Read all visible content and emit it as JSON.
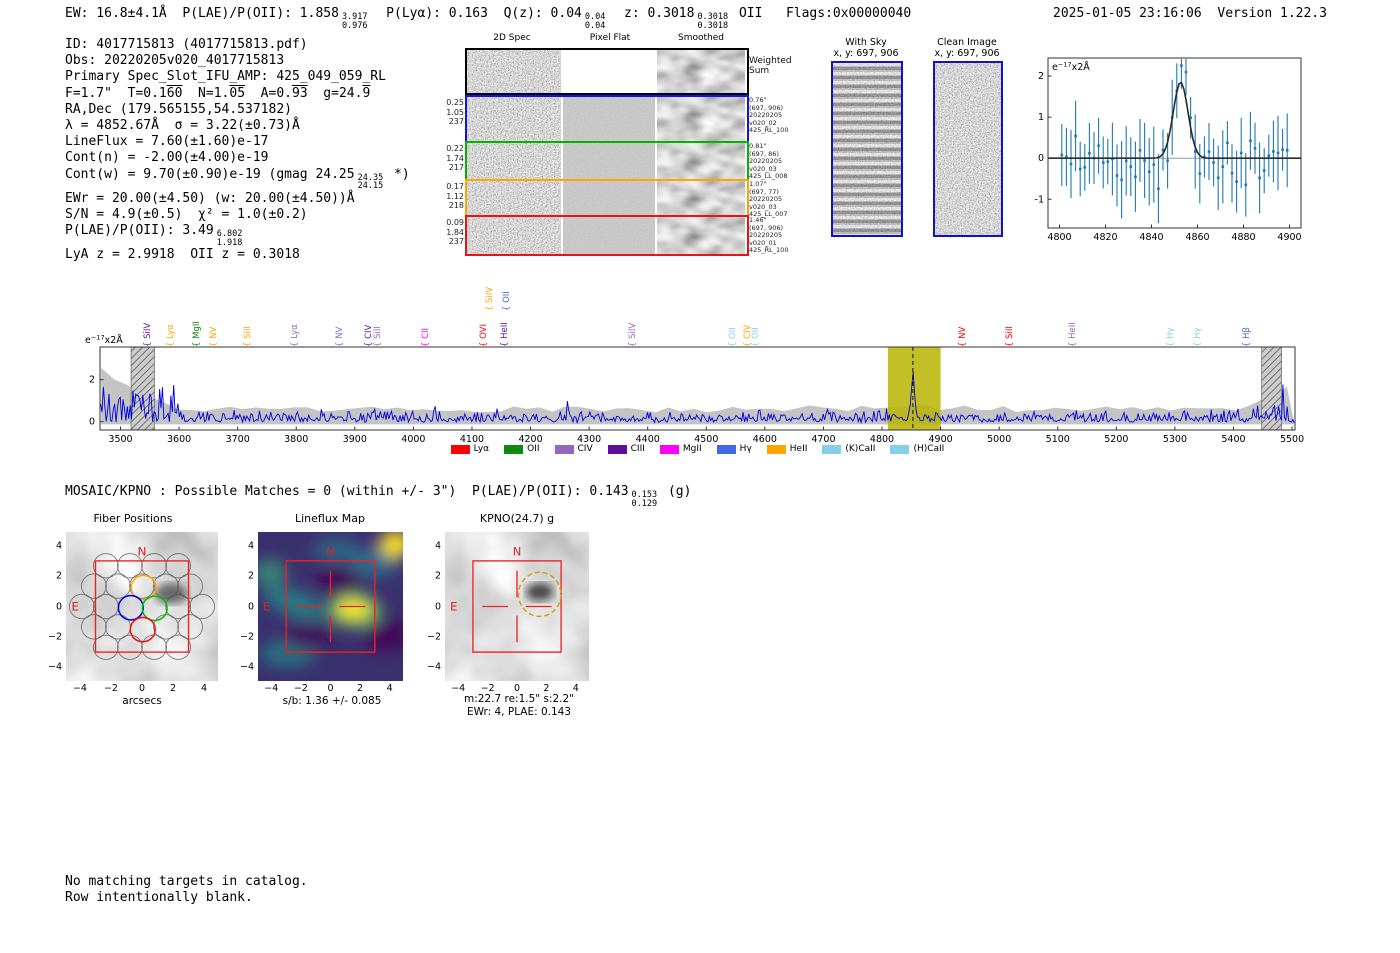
{
  "header": {
    "left_segments": [
      {
        "t": "EW: 16.8±4.1Å  P(LAE)/P(OII): 1.858"
      },
      {
        "hi": "3.917",
        "lo": "0.976"
      },
      {
        "t": "  P(Lyα): 0.163  Q(z): 0.04"
      },
      {
        "hi": "0.04",
        "lo": "0.04"
      },
      {
        "t": "  z: 0.3018"
      },
      {
        "hi": "0.3018",
        "lo": "0.3018"
      },
      {
        "t": " OII   Flags:0x00000040"
      }
    ],
    "timestamp": "2025-01-05 23:16:06",
    "version": "Version 1.22.3"
  },
  "info_block": {
    "lines": [
      [
        {
          "t": "ID: 4017715813 (4017715813.pdf)"
        }
      ],
      [
        {
          "t": "Obs: 20220205v020_4017715813"
        }
      ],
      [
        {
          "t": "Primary Spec_Slot_IFU_AMP: 425_049_059_RL"
        }
      ],
      [
        {
          "t": "F=1.7\"  T=0.1"
        },
        {
          "t": "60",
          "ov": true
        },
        {
          "t": "  N=1."
        },
        {
          "t": "05",
          "ov": true
        },
        {
          "t": "  A=0."
        },
        {
          "t": "93",
          "ov": true
        },
        {
          "t": "  g=24."
        },
        {
          "t": "9",
          "ov": true
        }
      ],
      [
        {
          "t": "RA,Dec (179.565155,54.537182)"
        }
      ],
      [
        {
          "t": "λ = 4852.67Å  σ = 3.22(±0.73)Å"
        }
      ],
      [
        {
          "t": "LineFlux = 7.60(±1.60)e-17"
        }
      ],
      [
        {
          "t": "Cont(n) = -2.00(±4.00)e-19"
        }
      ],
      [
        {
          "t": "Cont(w) = 9.70(±0.90)e-19 (gmag 24.25"
        },
        {
          "hi": "24.35",
          "lo": "24.15"
        },
        {
          "t": " *)"
        }
      ],
      [
        {
          "t": "EWr = 20.00(±4.50) (w: 20.00(±4.50))Å"
        }
      ],
      [
        {
          "t": "S/N = 4.9(±0.5)  χ² = 1.0(±0.2)"
        }
      ],
      [
        {
          "t": "P(LAE)/P(OII): 3.49"
        },
        {
          "hi": "6.802",
          "lo": "1.918"
        }
      ],
      [
        {
          "t": "LyA z = 2.9918  OII z = 0.3018"
        }
      ]
    ]
  },
  "spec2d": {
    "col_headers": [
      "2D Spec",
      "Pixel Flat",
      "Smoothed"
    ],
    "weighted_sum_label": "Weighted Sum",
    "rows": [
      {
        "border": "#1111ee",
        "left": [
          "0.25",
          "1.05",
          "237"
        ],
        "right": [
          "0.76\"",
          "(697, 906)",
          "20220205",
          "v020_02",
          "425_RL_100"
        ]
      },
      {
        "border": "#00b400",
        "left": [
          "0.22",
          "1.74",
          "217"
        ],
        "right": [
          "0.81\"",
          "(697, 86)",
          "20220205",
          "v020_03",
          "425_LL_008"
        ]
      },
      {
        "border": "#ffa500",
        "left": [
          "0.17",
          "1.12",
          "218"
        ],
        "right": [
          "1.07\"",
          "(697, 77)",
          "20220205",
          "v020_03",
          "425_LL_007"
        ]
      },
      {
        "border": "#ee1111",
        "left": [
          "0.09",
          "1.84",
          "237"
        ],
        "right": [
          "1.46\"",
          "(697, 906)",
          "20220205",
          "v020_01",
          "425_RL_100"
        ]
      }
    ]
  },
  "sky_panels": {
    "with_sky": {
      "title": "With Sky",
      "coords": "x, y: 697, 906"
    },
    "clean": {
      "title": "Clean Image",
      "coords": "x, y: 697, 906"
    }
  },
  "mosaic_line_segments": [
    {
      "t": "MOSAIC/KPNO : Possible Matches = 0 (within +/- 3\")  P(LAE)/P(OII): 0.143"
    },
    {
      "hi": "0.153",
      "lo": "0.129"
    },
    {
      "t": " (g)"
    }
  ],
  "cutouts": {
    "axis_ticks": [
      -4,
      -2,
      0,
      2,
      4
    ],
    "axis_lim": [
      -4.9,
      4.9
    ],
    "north_label": "N",
    "east_label": "E",
    "fiber": {
      "title": "Fiber Positions",
      "xlabel": "arcsecs"
    },
    "lineflux": {
      "title": "Lineflux Map",
      "caption": "s/b: 1.36 +/- 0.085"
    },
    "kpno": {
      "title": "KPNO(24.7) g",
      "caption1": "m:22.7 re:1.5\" s:2.2\"",
      "caption2": "EWr: 4, PLAE: 0.143"
    }
  },
  "footer": {
    "line1": "No matching targets in catalog.",
    "line2": "Row intentionally blank."
  },
  "main_plot": {
    "units_annotation": {
      "prefix": "e",
      "exponent": "−17",
      "suffix": "x2Å"
    },
    "family_colors": {
      "Lyα": "#ff0000",
      "OII": "#0f8a0f",
      "CIV": "#9467bd",
      "CIII": "#5d0f9b",
      "MgII": "#ff00ff",
      "Hγ": "#4169e1",
      "HeII": "#ffa500",
      "(K)CaII": "#87ceeb",
      "(H)CaII": "#87ceeb"
    },
    "legend": [
      {
        "label": "Lyα",
        "color": "#ff0000"
      },
      {
        "label": "OII",
        "color": "#0f8a0f"
      },
      {
        "label": "CIV",
        "color": "#9467bd"
      },
      {
        "label": "CIII",
        "color": "#5d0f9b"
      },
      {
        "label": "MgII",
        "color": "#ff00ff"
      },
      {
        "label": "Hγ",
        "color": "#4169e1"
      },
      {
        "label": "HeII",
        "color": "#ffa500"
      },
      {
        "label": "(K)CaII",
        "color": "#87ceeb"
      },
      {
        "label": "(H)CaII",
        "color": "#87ceeb"
      }
    ],
    "line_labels": [
      {
        "text": "SiIV",
        "family": "CIII",
        "wavelength": 3559
      },
      {
        "text": "Lyα",
        "family": "HeII",
        "wavelength": 3598
      },
      {
        "text": "MgII",
        "family": "OII",
        "wavelength": 3643
      },
      {
        "text": "NV",
        "family": "HeII",
        "wavelength": 3671
      },
      {
        "text": "SiII",
        "family": "HeII",
        "wavelength": 3729
      },
      {
        "text": "Lyα",
        "family": "CIV",
        "wavelength": 3809
      },
      {
        "text": "NV",
        "family": "CIV",
        "wavelength": 3887
      },
      {
        "text": "CIV",
        "family": "CIII",
        "wavelength": 3936
      },
      {
        "text": "SiII",
        "family": "CIV",
        "wavelength": 3952
      },
      {
        "text": "CII",
        "family": "MgII",
        "wavelength": 4034
      },
      {
        "text": "OVI",
        "family": "Lyα",
        "wavelength": 4132
      },
      {
        "text": "SiIV",
        "family": "HeII",
        "wavelength": 4143,
        "elevated": true
      },
      {
        "text": "OII",
        "family": "Hγ",
        "wavelength": 4172,
        "elevated": true
      },
      {
        "text": "HeII",
        "family": "CIII",
        "wavelength": 4169
      },
      {
        "text": "SiIV",
        "family": "CIV",
        "wavelength": 4387
      },
      {
        "text": "OII",
        "family": "(H)CaII",
        "wavelength": 4557
      },
      {
        "text": "CIV",
        "family": "HeII",
        "wavelength": 4583
      },
      {
        "text": "OII",
        "family": "(K)CaII",
        "wavelength": 4597
      },
      {
        "text": "NV",
        "family": "Lyα",
        "wavelength": 4950
      },
      {
        "text": "SiII",
        "family": "Lyα",
        "wavelength": 5030
      },
      {
        "text": "HeII",
        "family": "CIV",
        "wavelength": 5138
      },
      {
        "text": "Hγ",
        "family": "(H)CaII",
        "wavelength": 5306
      },
      {
        "text": "Hγ",
        "family": "(K)CaII",
        "wavelength": 5352
      },
      {
        "text": "Hβ",
        "family": "Hγ",
        "wavelength": 5435
      }
    ]
  },
  "chart_data": [
    {
      "id": "zoom_spectrum",
      "type": "line",
      "title": "",
      "xlim": [
        4795,
        4905
      ],
      "xticks": [
        4800,
        4820,
        4840,
        4860,
        4880,
        4900
      ],
      "ylim": [
        -1.7,
        2.44
      ],
      "yticks": [
        -1,
        0,
        1,
        2
      ],
      "units_annotation": {
        "prefix": "e",
        "exponent": "−17",
        "suffix": "x2Å"
      },
      "series": [
        {
          "name": "flux points",
          "style": "errorbar",
          "color": "#1f77b4",
          "x_step": 2,
          "note": "noisy flux values scattered ±1 with ~0.7 long error bars (synthetic reproduction)"
        },
        {
          "name": "gaussian fit",
          "style": "line",
          "color": "#2b2b2b",
          "center": 4852.67,
          "sigma": 3.22,
          "peak": 1.85
        }
      ]
    },
    {
      "id": "full_spectrum",
      "type": "line",
      "xlim": [
        3465,
        5505
      ],
      "xticks": [
        3500,
        3600,
        3700,
        3800,
        3900,
        4000,
        4100,
        4200,
        4300,
        4400,
        4500,
        4600,
        4700,
        4800,
        4900,
        5000,
        5100,
        5200,
        5300,
        5400,
        5500
      ],
      "ylim": [
        -0.4,
        3.55
      ],
      "yticks": [
        0,
        2
      ],
      "line_color": "#0000dd",
      "noise_band_color": "#c4c4c4",
      "emission_feature": {
        "center": 4852.67,
        "peak": 1.9
      },
      "highlight_band": {
        "x0": 4810,
        "x1": 4900,
        "color": "#b9b400"
      },
      "masked_bands": [
        [
          3518,
          3558
        ],
        [
          5448,
          5482
        ]
      ]
    }
  ]
}
